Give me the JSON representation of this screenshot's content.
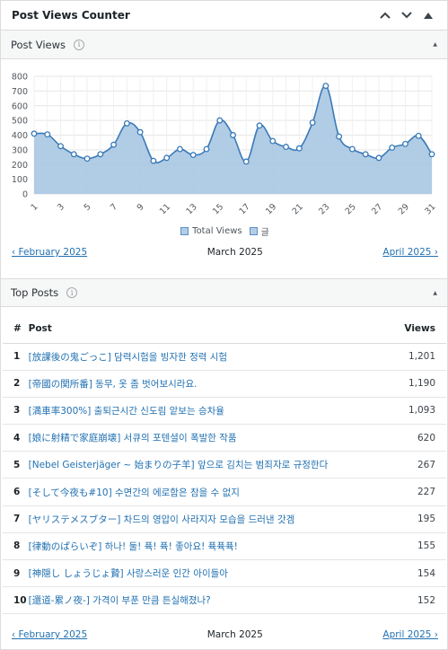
{
  "widget": {
    "title": "Post Views Counter"
  },
  "post_views": {
    "title": "Post Views",
    "legend": [
      "Total Views",
      "글"
    ],
    "nav": {
      "prev": "‹ February 2025",
      "current": "March 2025",
      "next": "April 2025 ›"
    }
  },
  "top_posts": {
    "title": "Top Posts",
    "headers": {
      "rank": "#",
      "post": "Post",
      "views": "Views"
    },
    "rows": [
      {
        "rank": "1",
        "title": "[放課後の鬼ごっこ] 담력시험을 빙자한 정력 시험",
        "views": "1,201"
      },
      {
        "rank": "2",
        "title": "[帝國の関所番] 동무, 옷 좀 벗어보시라요.",
        "views": "1,190"
      },
      {
        "rank": "3",
        "title": "[満車率300%] 출퇴근시간 신도림 앝보는 승차율",
        "views": "1,093"
      },
      {
        "rank": "4",
        "title": "[娘に射精で家庭崩壊] 서큐의 포텐셜이 폭발한 작품",
        "views": "620"
      },
      {
        "rank": "5",
        "title": "[Nebel Geisterjäger ~ 始まりの子羊] 앞으로 김치는 범죄자로 규정한다",
        "views": "267"
      },
      {
        "rank": "6",
        "title": "[そして今夜も#10] 수면간의 에로함은 참을 수 없지",
        "views": "227"
      },
      {
        "rank": "7",
        "title": "[ヤリステメスブター] 차드의 영압이 사라지자 모습을 드러낸 갓겜",
        "views": "195"
      },
      {
        "rank": "8",
        "title": "[律動のぱらいぞ] 하나! 둘! 퓩! 퓩! 좋아요! 퓩퓩퓩!",
        "views": "155"
      },
      {
        "rank": "9",
        "title": "[神隠し しょうじょ贄] 사랑스러운 인간 아이들아",
        "views": "154"
      },
      {
        "rank": "10",
        "title": "[還道-累ノ夜-] 가격이 부푼 만큼 튼실해졌나?",
        "views": "152"
      }
    ],
    "nav": {
      "prev": "‹ February 2025",
      "current": "March 2025",
      "next": "April 2025 ›"
    }
  },
  "colors": {
    "accent": "#2271b1",
    "fill": "#a9c6e2",
    "line": "#3a7ab8"
  },
  "chart_data": {
    "type": "area",
    "title": "",
    "xlabel": "",
    "ylabel": "",
    "x": [
      1,
      2,
      3,
      4,
      5,
      6,
      7,
      8,
      9,
      10,
      11,
      12,
      13,
      14,
      15,
      16,
      17,
      18,
      19,
      20,
      21,
      22,
      23,
      24,
      25,
      26,
      27,
      28,
      29,
      30,
      31
    ],
    "x_tick_labels": [
      "1",
      "3",
      "5",
      "7",
      "9",
      "11",
      "13",
      "15",
      "17",
      "19",
      "21",
      "23",
      "25",
      "27",
      "29",
      "31"
    ],
    "y_ticks": [
      0,
      100,
      200,
      300,
      400,
      500,
      600,
      700,
      800
    ],
    "ylim": [
      0,
      800
    ],
    "grid": true,
    "legend_position": "bottom",
    "series": [
      {
        "name": "Total Views",
        "values": [
          410,
          405,
          325,
          270,
          240,
          270,
          335,
          480,
          420,
          225,
          245,
          305,
          265,
          305,
          500,
          400,
          220,
          465,
          360,
          320,
          310,
          485,
          735,
          390,
          305,
          270,
          245,
          315,
          340,
          395,
          270
        ]
      }
    ]
  }
}
